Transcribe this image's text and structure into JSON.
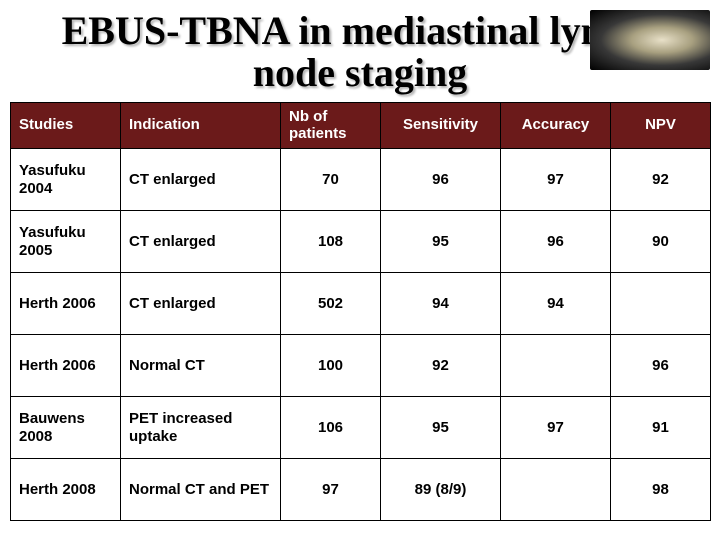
{
  "title": "EBUS-TBNA in mediastinal lymph node staging",
  "table": {
    "header_bg": "#6b1a1a",
    "header_fg": "#ffffff",
    "columns": [
      {
        "label": "Studies",
        "align": "left"
      },
      {
        "label": "Indication",
        "align": "left"
      },
      {
        "label": "Nb of patients",
        "align": "left"
      },
      {
        "label": "Sensitivity",
        "align": "center"
      },
      {
        "label": "Accuracy",
        "align": "center"
      },
      {
        "label": "NPV",
        "align": "center"
      }
    ],
    "rows": [
      {
        "study": "Yasufuku 2004",
        "indication": "CT enlarged",
        "n": "70",
        "sens": "96",
        "acc": "97",
        "npv": "92"
      },
      {
        "study": "Yasufuku 2005",
        "indication": "CT enlarged",
        "n": "108",
        "sens": "95",
        "acc": "96",
        "npv": "90"
      },
      {
        "study": "Herth 2006",
        "indication": "CT enlarged",
        "n": "502",
        "sens": "94",
        "acc": "94",
        "npv": ""
      },
      {
        "study": "Herth 2006",
        "indication": "Normal CT",
        "n": "100",
        "sens": "92",
        "acc": "",
        "npv": "96"
      },
      {
        "study": "Bauwens 2008",
        "indication": "PET increased uptake",
        "n": "106",
        "sens": "95",
        "acc": "97",
        "npv": "91"
      },
      {
        "study": "Herth 2008",
        "indication": "Normal CT and PET",
        "n": "97",
        "sens": "89 (8/9)",
        "acc": "",
        "npv": "98"
      }
    ]
  }
}
